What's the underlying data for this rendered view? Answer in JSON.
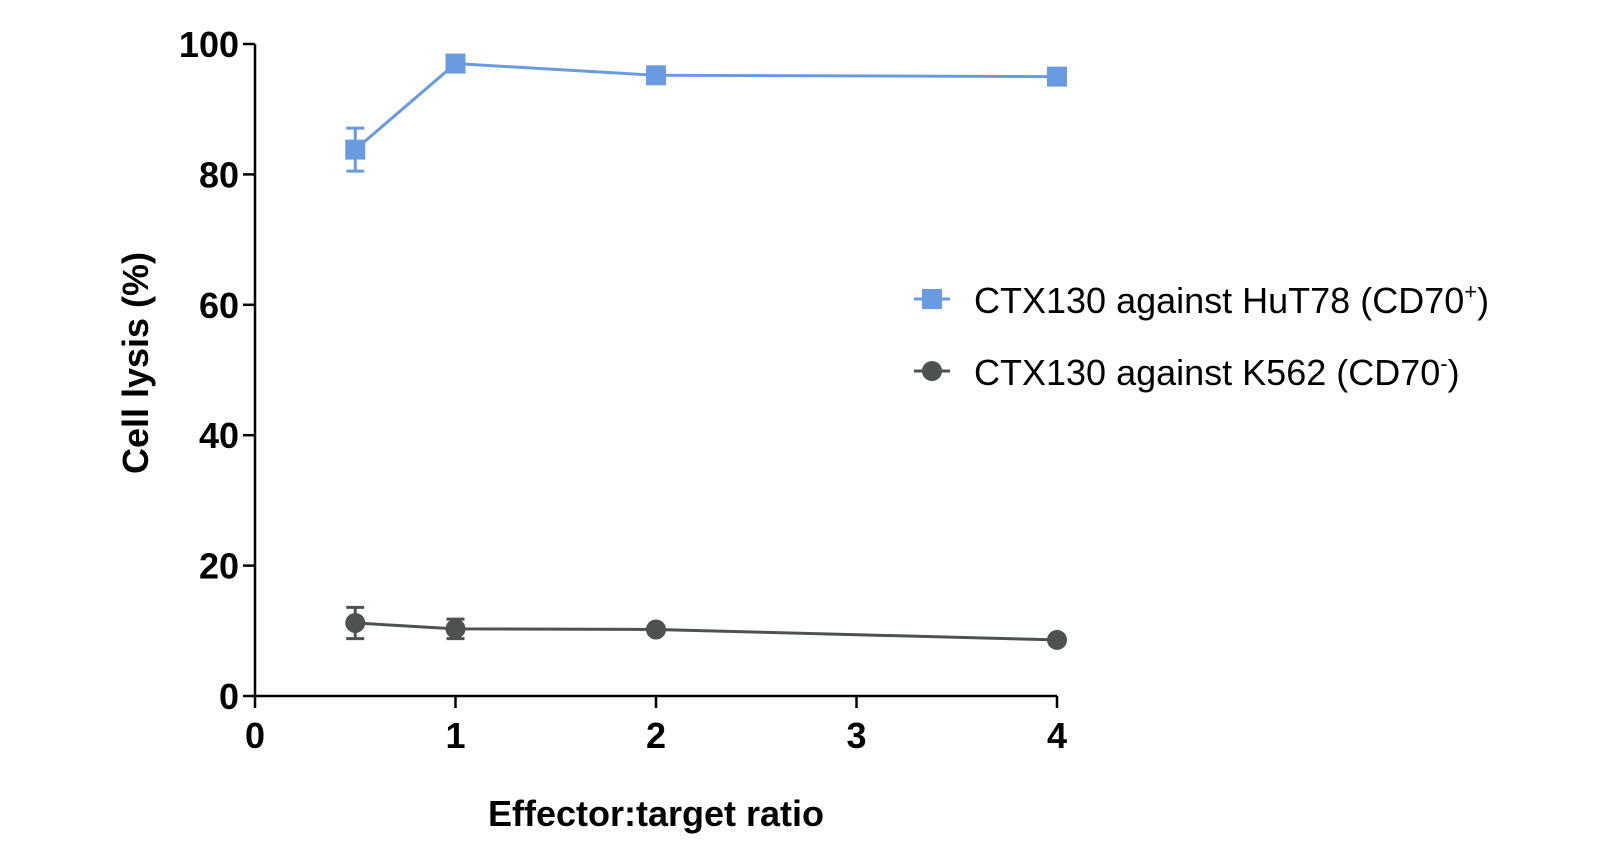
{
  "chart_data": {
    "type": "line",
    "title": "",
    "xlabel": "Effector:target ratio",
    "ylabel": "Cell lysis (%)",
    "xlim": [
      0,
      4
    ],
    "ylim": [
      0,
      100
    ],
    "x_ticks": [
      0,
      1,
      2,
      3,
      4
    ],
    "x_tick_labels": [
      "0",
      "1",
      "2",
      "3",
      "4"
    ],
    "y_ticks": [
      0,
      20,
      40,
      60,
      80,
      100
    ],
    "y_tick_labels": [
      "0",
      "20",
      "40",
      "60",
      "80",
      "100"
    ],
    "grid": false,
    "legend_position": "right",
    "series": [
      {
        "name": "CTX130 against HuT78 (CD70+)",
        "label_main": "CTX130 against HuT78 (CD70",
        "label_sup": "+",
        "label_end": ")",
        "color": "#6a9be0",
        "marker": "square",
        "x": [
          0.5,
          1,
          2,
          4
        ],
        "y": [
          83.8,
          97.0,
          95.2,
          95.0
        ],
        "err": [
          3.3,
          0.5,
          0.5,
          0.4
        ]
      },
      {
        "name": "CTX130 against K562 (CD70-)",
        "label_main": "CTX130 against K562 (CD70",
        "label_sup": "-",
        "label_end": ")",
        "color": "#4d524f",
        "marker": "circle",
        "x": [
          0.5,
          1,
          2,
          4
        ],
        "y": [
          11.2,
          10.3,
          10.2,
          8.6
        ],
        "err": [
          2.4,
          1.5,
          0.5,
          0.4
        ]
      }
    ]
  }
}
